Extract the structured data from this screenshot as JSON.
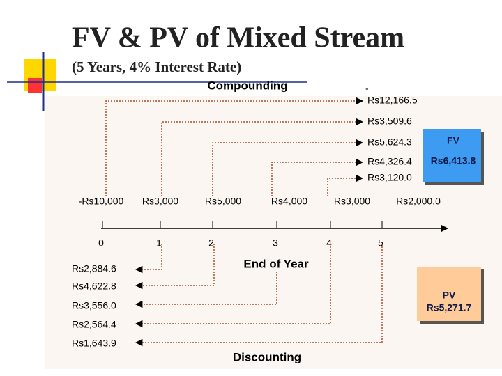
{
  "title": "FV & PV of Mixed Stream",
  "subtitle": "(5 Years, 4% Interest Rate)",
  "compounding": {
    "label": "Compounding",
    "sign": "-",
    "values": [
      "Rs12,166.5",
      "Rs3,509.6",
      "Rs5,624.3",
      "Rs4,326.4",
      "Rs3,120.0"
    ]
  },
  "fv_box": {
    "label": "FV",
    "value": "Rs6,413.8"
  },
  "cash_flows": [
    "-Rs10,000",
    "Rs3,000",
    "Rs5,000",
    "Rs4,000",
    "Rs3,000",
    "Rs2,000.0"
  ],
  "years": [
    0,
    1,
    2,
    3,
    4,
    5
  ],
  "axis_label": "End of Year",
  "discounting": {
    "label": "Discounting",
    "values": [
      "Rs2,884.6",
      "Rs4,622.8",
      "Rs3,556.0",
      "Rs2,564.4",
      "Rs1,643.9"
    ]
  },
  "pv_box": {
    "label": "PV",
    "value": "Rs5,271.7"
  }
}
